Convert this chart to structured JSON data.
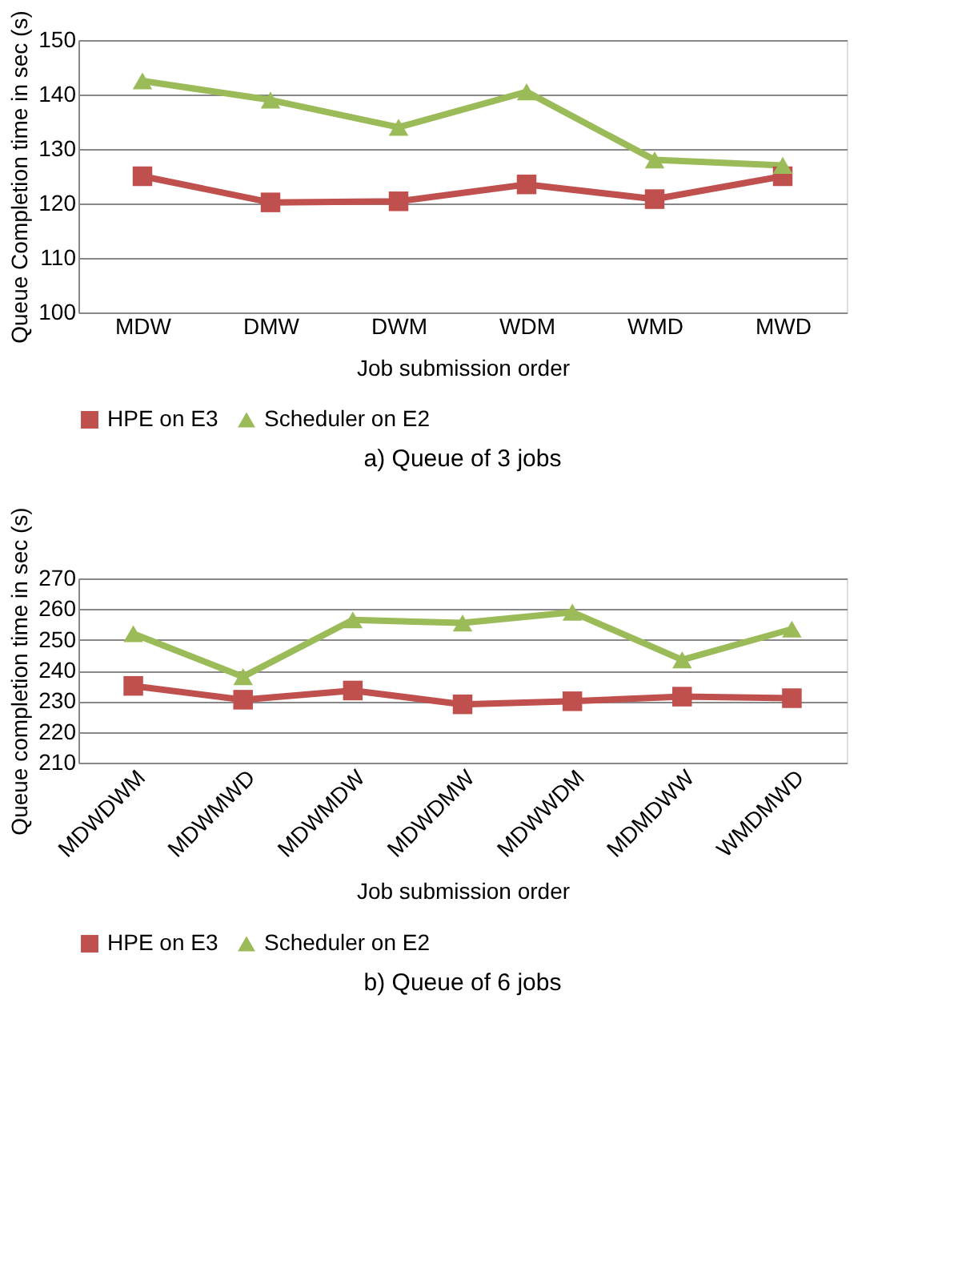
{
  "chart_data": [
    {
      "type": "line",
      "xlabel": "Job submission order",
      "ylabel": "Queue Completion time in sec (s)",
      "categories": [
        "MDW",
        "DMW",
        "DWM",
        "WDM",
        "WMD",
        "MWD"
      ],
      "ylim": [
        100,
        150
      ],
      "yticks": [
        100,
        110,
        120,
        130,
        140,
        150
      ],
      "grid": "y",
      "legend": "bottom",
      "line_style": "solid",
      "annotations": [
        "a)     Queue of 3 jobs"
      ],
      "series": [
        {
          "name": "HPE on E3",
          "color": "#c0504d",
          "marker": "square",
          "values": [
            125,
            120.2,
            120.4,
            123.5,
            120.8,
            125
          ]
        },
        {
          "name": "Scheduler on E2",
          "color": "#9bbb59",
          "marker": "triangle",
          "values": [
            142.5,
            139,
            134,
            140.5,
            128,
            127
          ]
        }
      ]
    },
    {
      "type": "line",
      "xlabel": "Job submission order",
      "ylabel": "Queue completion time in sec (s)",
      "categories": [
        "MDWDWM",
        "MDWMWD",
        "MDWMDW",
        "MDWDMW",
        "MDWWDM",
        "MDMDWW",
        "WMDMWD"
      ],
      "ylim": [
        210,
        270
      ],
      "yticks": [
        210,
        220,
        230,
        240,
        250,
        260,
        270
      ],
      "grid": "y",
      "legend": "bottom",
      "line_style": "solid",
      "annotations": [
        "b)     Queue of 6 jobs"
      ],
      "series": [
        {
          "name": "HPE on E3",
          "color": "#c0504d",
          "marker": "square",
          "values": [
            235,
            230.5,
            233.5,
            229,
            230,
            231.5,
            231
          ]
        },
        {
          "name": "Scheduler on E2",
          "color": "#9bbb59",
          "marker": "triangle",
          "values": [
            252,
            238,
            256.5,
            255.5,
            259,
            243.5,
            253.5
          ]
        }
      ]
    }
  ]
}
